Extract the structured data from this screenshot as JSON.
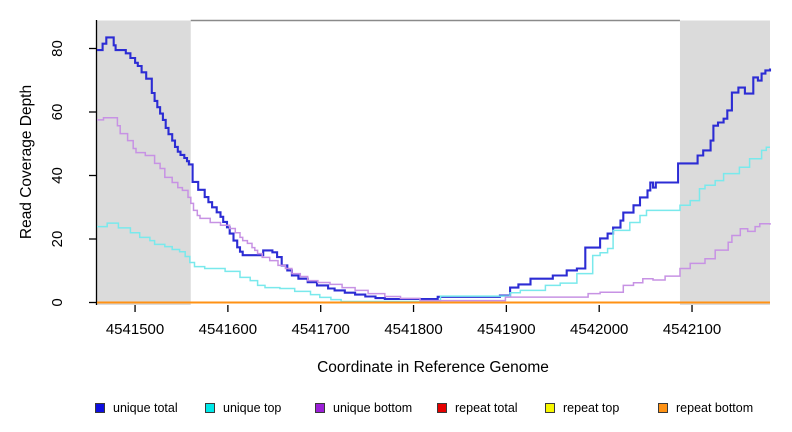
{
  "chart_data": {
    "type": "line",
    "subtype": "step",
    "title": "",
    "xlabel": "Coordinate in Reference Genome",
    "ylabel": "Read Coverage Depth",
    "x_range": [
      4541459,
      4542184
    ],
    "y_range": [
      0,
      88
    ],
    "x_ticks": [
      4541500,
      4541600,
      4541700,
      4541800,
      4541900,
      4542000,
      4542100
    ],
    "y_ticks": [
      0,
      20,
      40,
      60,
      80
    ],
    "grid": false,
    "legend_position": "bottom",
    "shade_color": "#dbdbdb",
    "top_border_color": "#8a8a8a",
    "axis_color": "#000000",
    "shaded_regions": [
      {
        "from": 4541459,
        "to": 4541560
      },
      {
        "from": 4542087,
        "to": 4542184
      }
    ],
    "series": [
      {
        "name": "unique total",
        "color": "#0f0fe0",
        "line_color": "#2c2cd4",
        "line_width": 2.1,
        "steps": [
          [
            4541459,
            79.5
          ],
          [
            4541465,
            81.5
          ],
          [
            4541469,
            83.5
          ],
          [
            4541477,
            81
          ],
          [
            4541479,
            79.5
          ],
          [
            4541490,
            78.5
          ],
          [
            4541495,
            77
          ],
          [
            4541500,
            75.5
          ],
          [
            4541503,
            74.5
          ],
          [
            4541507,
            72.5
          ],
          [
            4541512,
            70.5
          ],
          [
            4541518,
            66
          ],
          [
            4541521,
            63.5
          ],
          [
            4541524,
            61.5
          ],
          [
            4541527,
            59.5
          ],
          [
            4541530,
            57.5
          ],
          [
            4541533,
            55
          ],
          [
            4541536,
            53
          ],
          [
            4541540,
            51
          ],
          [
            4541543,
            49
          ],
          [
            4541546,
            47.5
          ],
          [
            4541549,
            46.5
          ],
          [
            4541553,
            45.5
          ],
          [
            4541556,
            44.5
          ],
          [
            4541558,
            43.5
          ],
          [
            4541562,
            38
          ],
          [
            4541568,
            35.5
          ],
          [
            4541575,
            33.2
          ],
          [
            4541579,
            31.6
          ],
          [
            4541583,
            30
          ],
          [
            4541588,
            28.4
          ],
          [
            4541592,
            27
          ],
          [
            4541595,
            25.4
          ],
          [
            4541599,
            23.7
          ],
          [
            4541602,
            21.7
          ],
          [
            4541606,
            19.5
          ],
          [
            4541610,
            17.4
          ],
          [
            4541613,
            16
          ],
          [
            4541616,
            14.9
          ],
          [
            4541638,
            16.4
          ],
          [
            4541648,
            15.8
          ],
          [
            4541653,
            14.3
          ],
          [
            4541658,
            11.7
          ],
          [
            4541664,
            10.1
          ],
          [
            4541669,
            8.5
          ],
          [
            4541676,
            7.5
          ],
          [
            4541686,
            6.4
          ],
          [
            4541696,
            5.4
          ],
          [
            4541708,
            4.4
          ],
          [
            4541715,
            3.8
          ],
          [
            4541726,
            3.1
          ],
          [
            4541737,
            2.5
          ],
          [
            4541748,
            1.9
          ],
          [
            4541759,
            1.4
          ],
          [
            4541769,
            1.1
          ],
          [
            4541826,
            1.8
          ],
          [
            4541893,
            2.2
          ],
          [
            4541904,
            4.7
          ],
          [
            4541913,
            5.7
          ],
          [
            4541926,
            7.5
          ],
          [
            4541950,
            8.5
          ],
          [
            4541965,
            10.1
          ],
          [
            4541976,
            10.7
          ],
          [
            4541985,
            17.3
          ],
          [
            4542001,
            20.2
          ],
          [
            4542009,
            21.7
          ],
          [
            4542015,
            23.6
          ],
          [
            4542023,
            25.8
          ],
          [
            4542026,
            28.3
          ],
          [
            4542037,
            30.6
          ],
          [
            4542044,
            33.1
          ],
          [
            4542052,
            35.3
          ],
          [
            4542055,
            37.8
          ],
          [
            4542058,
            36.2
          ],
          [
            4542061,
            37.8
          ],
          [
            4542085,
            43.8
          ],
          [
            4542106,
            46.3
          ],
          [
            4542112,
            47.9
          ],
          [
            4542120,
            51
          ],
          [
            4542123,
            55.7
          ],
          [
            4542128,
            56.7
          ],
          [
            4542134,
            57.9
          ],
          [
            4542138,
            60.5
          ],
          [
            4542143,
            66.1
          ],
          [
            4542150,
            67.7
          ],
          [
            4542157,
            65.8
          ],
          [
            4542166,
            70.9
          ],
          [
            4542171,
            69.9
          ],
          [
            4542175,
            72.1
          ],
          [
            4542179,
            73.1
          ],
          [
            4542184,
            73.7
          ]
        ]
      },
      {
        "name": "unique top",
        "color": "#00e8e8",
        "line_color": "#79e9ec",
        "line_width": 1.5,
        "steps": [
          [
            4541459,
            23.9
          ],
          [
            4541470,
            25
          ],
          [
            4541482,
            23.5
          ],
          [
            4541495,
            22
          ],
          [
            4541505,
            20.5
          ],
          [
            4541516,
            19.5
          ],
          [
            4541521,
            18.3
          ],
          [
            4541532,
            17.6
          ],
          [
            4541540,
            16.7
          ],
          [
            4541548,
            16
          ],
          [
            4541554,
            14.5
          ],
          [
            4541559,
            12.6
          ],
          [
            4541564,
            11.3
          ],
          [
            4541575,
            10.7
          ],
          [
            4541597,
            9.8
          ],
          [
            4541613,
            7.9
          ],
          [
            4541624,
            6.9
          ],
          [
            4541632,
            5.4
          ],
          [
            4541640,
            4.7
          ],
          [
            4541656,
            4.4
          ],
          [
            4541672,
            3.5
          ],
          [
            4541689,
            2.5
          ],
          [
            4541699,
            1.6
          ],
          [
            4541711,
            0.9
          ],
          [
            4541722,
            0.3
          ],
          [
            4541829,
            2
          ],
          [
            4541904,
            3.1
          ],
          [
            4541915,
            3.8
          ],
          [
            4541942,
            5.4
          ],
          [
            4541958,
            6.1
          ],
          [
            4541976,
            9.1
          ],
          [
            4541993,
            14.8
          ],
          [
            4542001,
            15.7
          ],
          [
            4542009,
            17
          ],
          [
            4542015,
            22.7
          ],
          [
            4542033,
            25.2
          ],
          [
            4542044,
            27.4
          ],
          [
            4542051,
            29
          ],
          [
            4542087,
            30.6
          ],
          [
            4542098,
            32.1
          ],
          [
            4542108,
            35.8
          ],
          [
            4542114,
            36.9
          ],
          [
            4542125,
            38.4
          ],
          [
            4542134,
            40.6
          ],
          [
            4542151,
            42.6
          ],
          [
            4542162,
            45.3
          ],
          [
            4542175,
            47.9
          ],
          [
            4542180,
            48.9
          ]
        ]
      },
      {
        "name": "unique bottom",
        "color": "#9c1fd8",
        "line_color": "#c792e4",
        "line_width": 1.5,
        "steps": [
          [
            4541459,
            57.5
          ],
          [
            4541466,
            58.2
          ],
          [
            4541481,
            55.7
          ],
          [
            4541484,
            53.2
          ],
          [
            4541492,
            51
          ],
          [
            4541498,
            48.5
          ],
          [
            4541501,
            47.2
          ],
          [
            4541511,
            46.3
          ],
          [
            4541521,
            43.8
          ],
          [
            4541527,
            42.2
          ],
          [
            4541532,
            39.4
          ],
          [
            4541540,
            37.8
          ],
          [
            4541546,
            36.2
          ],
          [
            4541551,
            35.3
          ],
          [
            4541557,
            33.1
          ],
          [
            4541560,
            31.2
          ],
          [
            4541563,
            29
          ],
          [
            4541567,
            27.4
          ],
          [
            4541570,
            26.5
          ],
          [
            4541581,
            25.2
          ],
          [
            4541592,
            24.3
          ],
          [
            4541602,
            23.3
          ],
          [
            4541608,
            22
          ],
          [
            4541613,
            20.5
          ],
          [
            4541616,
            19.5
          ],
          [
            4541621,
            18.6
          ],
          [
            4541626,
            17.3
          ],
          [
            4541629,
            16.4
          ],
          [
            4541632,
            15.4
          ],
          [
            4541637,
            14.2
          ],
          [
            4541645,
            13.2
          ],
          [
            4541654,
            11.7
          ],
          [
            4541662,
            10.7
          ],
          [
            4541669,
            9.1
          ],
          [
            4541678,
            8.2
          ],
          [
            4541686,
            6.9
          ],
          [
            4541697,
            6.3
          ],
          [
            4541710,
            5.7
          ],
          [
            4541723,
            4.7
          ],
          [
            4541737,
            3.8
          ],
          [
            4541751,
            2.8
          ],
          [
            4541769,
            1.9
          ],
          [
            4541786,
            1.3
          ],
          [
            4541807,
            0.6
          ],
          [
            4541899,
            1.7
          ],
          [
            4541988,
            2.8
          ],
          [
            4542001,
            3.2
          ],
          [
            4542026,
            5.4
          ],
          [
            4542037,
            6.2
          ],
          [
            4542047,
            7.5
          ],
          [
            4542058,
            7.1
          ],
          [
            4542071,
            8.3
          ],
          [
            4542087,
            10.7
          ],
          [
            4542098,
            12.3
          ],
          [
            4542114,
            13.8
          ],
          [
            4542125,
            16.5
          ],
          [
            4542139,
            19
          ],
          [
            4542143,
            21.1
          ],
          [
            4542152,
            23.2
          ],
          [
            4542160,
            22.4
          ],
          [
            4542168,
            23.9
          ],
          [
            4542173,
            24.8
          ],
          [
            4542184,
            24.5
          ]
        ]
      },
      {
        "name": "repeat total",
        "color": "#e60000",
        "line_color": "#e05555",
        "line_width": 1.4,
        "steps": [
          [
            4541459,
            0
          ],
          [
            4542184,
            0
          ]
        ]
      },
      {
        "name": "repeat top",
        "color": "#f7f700",
        "line_color": "#f7f700",
        "line_width": 1.4,
        "steps": [
          [
            4541459,
            0
          ],
          [
            4542184,
            0
          ]
        ]
      },
      {
        "name": "repeat bottom",
        "color": "#ff9214",
        "line_color": "#ff9214",
        "line_width": 2,
        "steps": [
          [
            4541459,
            0
          ],
          [
            4542184,
            0
          ]
        ]
      }
    ]
  }
}
